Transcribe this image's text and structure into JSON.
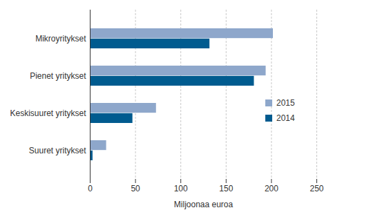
{
  "chart_data": {
    "type": "bar",
    "orientation": "horizontal",
    "categories": [
      "Mikroyritykset",
      "Pienet yritykset",
      "Keskisuuret yritykset",
      "Suuret yritykset"
    ],
    "series": [
      {
        "name": "2015",
        "color": "#8ea7cb",
        "values": [
          202,
          194,
          73,
          18
        ]
      },
      {
        "name": "2014",
        "color": "#005b8f",
        "values": [
          132,
          181,
          47,
          3
        ]
      }
    ],
    "x_label": "Miljoonaa euroa",
    "xlim": [
      0,
      250
    ],
    "xticks": [
      0,
      50,
      100,
      150,
      200,
      250
    ],
    "grid": true,
    "legend": "right"
  }
}
